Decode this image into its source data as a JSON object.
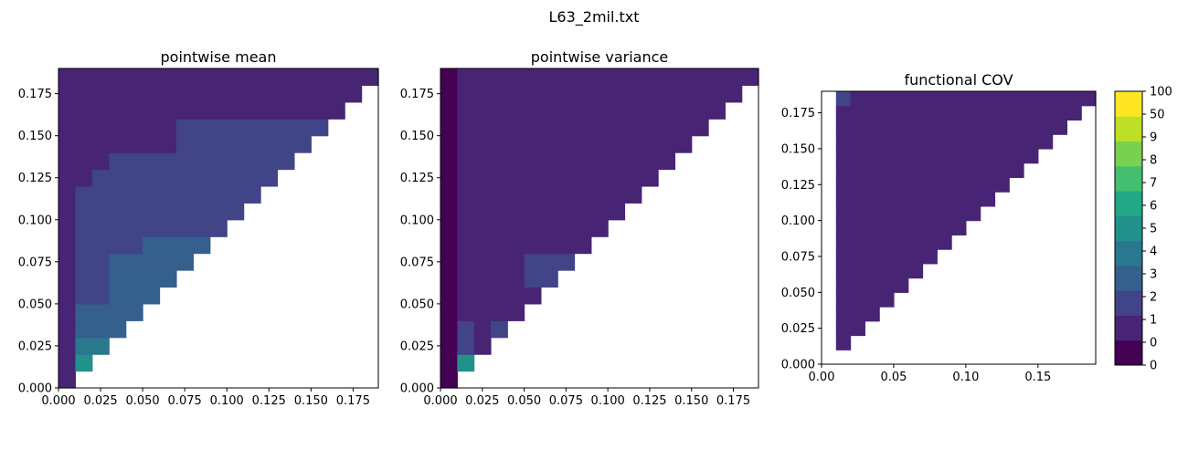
{
  "figure_title": "L63_2mil.txt",
  "colorbar": {
    "labels": [
      "0",
      "0",
      "1",
      "2",
      "3",
      "4",
      "5",
      "6",
      "7",
      "8",
      "9",
      "50",
      "100"
    ],
    "colors": [
      "#440154",
      "#482475",
      "#414487",
      "#355f8d",
      "#2a788e",
      "#21918c",
      "#22a884",
      "#44bf70",
      "#7ad151",
      "#bddf26",
      "#fde725"
    ]
  },
  "chart_data": [
    {
      "type": "heatmap",
      "title": "pointwise mean",
      "xlabel": "",
      "ylabel": "",
      "xlim": [
        0,
        0.19
      ],
      "ylim": [
        0,
        0.19
      ],
      "xticks": [
        "0.000",
        "0.025",
        "0.050",
        "0.075",
        "0.100",
        "0.125",
        "0.150",
        "0.175"
      ],
      "yticks": [
        "0.000",
        "0.025",
        "0.050",
        "0.075",
        "0.100",
        "0.125",
        "0.150",
        "0.175"
      ],
      "cell_size": 0.01,
      "max_row_col": [
        0,
        1,
        2,
        3,
        4,
        5,
        6,
        7,
        8,
        9,
        10,
        11,
        12,
        13,
        14,
        15,
        16,
        17,
        18
      ],
      "grid": [
        [
          0
        ],
        [
          0,
          4
        ],
        [
          0,
          3,
          3
        ],
        [
          0,
          2,
          2,
          2
        ],
        [
          0,
          2,
          2,
          2,
          2
        ],
        [
          0,
          1,
          1,
          2,
          2,
          2
        ],
        [
          0,
          1,
          1,
          2,
          2,
          2,
          2
        ],
        [
          0,
          1,
          1,
          2,
          2,
          2,
          2,
          2
        ],
        [
          0,
          1,
          1,
          1,
          1,
          2,
          2,
          2,
          2
        ],
        [
          0,
          1,
          1,
          1,
          1,
          1,
          1,
          1,
          1,
          1
        ],
        [
          0,
          1,
          1,
          1,
          1,
          1,
          1,
          1,
          1,
          1,
          1
        ],
        [
          0,
          1,
          1,
          1,
          1,
          1,
          1,
          1,
          1,
          1,
          1,
          1
        ],
        [
          0,
          0,
          1,
          1,
          1,
          1,
          1,
          1,
          1,
          1,
          1,
          1,
          1
        ],
        [
          0,
          0,
          0,
          1,
          1,
          1,
          1,
          1,
          1,
          1,
          1,
          1,
          1,
          1
        ],
        [
          0,
          0,
          0,
          0,
          0,
          0,
          0,
          1,
          1,
          1,
          1,
          1,
          1,
          1,
          1
        ],
        [
          0,
          0,
          0,
          0,
          0,
          0,
          0,
          1,
          1,
          1,
          1,
          1,
          1,
          1,
          1,
          1
        ],
        [
          0,
          0,
          0,
          0,
          0,
          0,
          0,
          0,
          0,
          0,
          0,
          0,
          0,
          0,
          0,
          0,
          0
        ],
        [
          0,
          0,
          0,
          0,
          0,
          0,
          0,
          0,
          0,
          0,
          0,
          0,
          0,
          0,
          0,
          0,
          0,
          0
        ],
        [
          0,
          0,
          0,
          0,
          0,
          0,
          0,
          0,
          0,
          0,
          0,
          0,
          0,
          0,
          0,
          0,
          0,
          0,
          0
        ]
      ]
    },
    {
      "type": "heatmap",
      "title": "pointwise variance",
      "xlabel": "",
      "ylabel": "",
      "xlim": [
        0,
        0.19
      ],
      "ylim": [
        0,
        0.19
      ],
      "xticks": [
        "0.000",
        "0.025",
        "0.050",
        "0.075",
        "0.100",
        "0.125",
        "0.150",
        "0.175"
      ],
      "yticks": [
        "0.000",
        "0.025",
        "0.050",
        "0.075",
        "0.100",
        "0.125",
        "0.150",
        "0.175"
      ],
      "cell_size": 0.01,
      "max_row_col": [
        0,
        1,
        2,
        3,
        4,
        5,
        6,
        7,
        8,
        9,
        10,
        11,
        12,
        13,
        14,
        15,
        16,
        17,
        18
      ],
      "grid": [
        [
          -1
        ],
        [
          -1,
          4
        ],
        [
          -1,
          1,
          0
        ],
        [
          -1,
          1,
          0,
          1
        ],
        [
          -1,
          0,
          0,
          0,
          0
        ],
        [
          -1,
          0,
          0,
          0,
          0,
          0
        ],
        [
          -1,
          0,
          0,
          0,
          0,
          1,
          1
        ],
        [
          -1,
          0,
          0,
          0,
          0,
          1,
          1,
          1
        ],
        [
          -1,
          0,
          0,
          0,
          0,
          0,
          0,
          0,
          0
        ],
        [
          -1,
          0,
          0,
          0,
          0,
          0,
          0,
          0,
          0,
          0
        ],
        [
          -1,
          0,
          0,
          0,
          0,
          0,
          0,
          0,
          0,
          0,
          0
        ],
        [
          -1,
          0,
          0,
          0,
          0,
          0,
          0,
          0,
          0,
          0,
          0,
          0
        ],
        [
          -1,
          0,
          0,
          0,
          0,
          0,
          0,
          0,
          0,
          0,
          0,
          0,
          0
        ],
        [
          -1,
          0,
          0,
          0,
          0,
          0,
          0,
          0,
          0,
          0,
          0,
          0,
          0,
          0
        ],
        [
          -1,
          0,
          0,
          0,
          0,
          0,
          0,
          0,
          0,
          0,
          0,
          0,
          0,
          0,
          0
        ],
        [
          -1,
          0,
          0,
          0,
          0,
          0,
          0,
          0,
          0,
          0,
          0,
          0,
          0,
          0,
          0,
          0
        ],
        [
          -1,
          0,
          0,
          0,
          0,
          0,
          0,
          0,
          0,
          0,
          0,
          0,
          0,
          0,
          0,
          0,
          0
        ],
        [
          -1,
          0,
          0,
          0,
          0,
          0,
          0,
          0,
          0,
          0,
          0,
          0,
          0,
          0,
          0,
          0,
          0,
          0
        ],
        [
          -1,
          0,
          0,
          0,
          0,
          0,
          0,
          0,
          0,
          0,
          0,
          0,
          0,
          0,
          0,
          0,
          0,
          0,
          0
        ]
      ]
    },
    {
      "type": "heatmap",
      "title": "functional COV",
      "xlabel": "",
      "ylabel": "",
      "xlim": [
        0,
        0.19
      ],
      "ylim": [
        0,
        0.19
      ],
      "xticks": [
        "0.00",
        "0.05",
        "0.10",
        "0.15"
      ],
      "yticks": [
        "0.000",
        "0.025",
        "0.050",
        "0.075",
        "0.100",
        "0.125",
        "0.150",
        "0.175"
      ],
      "cell_size": 0.01,
      "max_row_col": [
        -1,
        1,
        2,
        3,
        4,
        5,
        6,
        7,
        8,
        9,
        10,
        11,
        12,
        13,
        14,
        15,
        16,
        17,
        18
      ],
      "first_col": 1,
      "grid": [
        [],
        [
          null,
          0
        ],
        [
          null,
          0,
          0
        ],
        [
          null,
          0,
          0,
          0
        ],
        [
          null,
          0,
          0,
          0,
          0
        ],
        [
          null,
          0,
          0,
          0,
          0,
          0
        ],
        [
          null,
          0,
          0,
          0,
          0,
          0,
          0
        ],
        [
          null,
          0,
          0,
          0,
          0,
          0,
          0,
          0
        ],
        [
          null,
          0,
          0,
          0,
          0,
          0,
          0,
          0,
          0
        ],
        [
          null,
          0,
          0,
          0,
          0,
          0,
          0,
          0,
          0,
          0
        ],
        [
          null,
          0,
          0,
          0,
          0,
          0,
          0,
          0,
          0,
          0,
          0
        ],
        [
          null,
          0,
          0,
          0,
          0,
          0,
          0,
          0,
          0,
          0,
          0,
          0
        ],
        [
          null,
          0,
          0,
          0,
          0,
          0,
          0,
          0,
          0,
          0,
          0,
          0,
          0
        ],
        [
          null,
          0,
          0,
          0,
          0,
          0,
          0,
          0,
          0,
          0,
          0,
          0,
          0,
          0
        ],
        [
          null,
          0,
          0,
          0,
          0,
          0,
          0,
          0,
          0,
          0,
          0,
          0,
          0,
          0,
          0
        ],
        [
          null,
          0,
          0,
          0,
          0,
          0,
          0,
          0,
          0,
          0,
          0,
          0,
          0,
          0,
          0,
          0
        ],
        [
          null,
          0,
          0,
          0,
          0,
          0,
          0,
          0,
          0,
          0,
          0,
          0,
          0,
          0,
          0,
          0,
          0
        ],
        [
          null,
          0,
          0,
          0,
          0,
          0,
          0,
          0,
          0,
          0,
          0,
          0,
          0,
          0,
          0,
          0,
          0,
          0
        ],
        [
          null,
          1,
          0,
          0,
          0,
          0,
          0,
          0,
          0,
          0,
          0,
          0,
          0,
          0,
          0,
          0,
          0,
          0,
          0
        ]
      ]
    }
  ]
}
